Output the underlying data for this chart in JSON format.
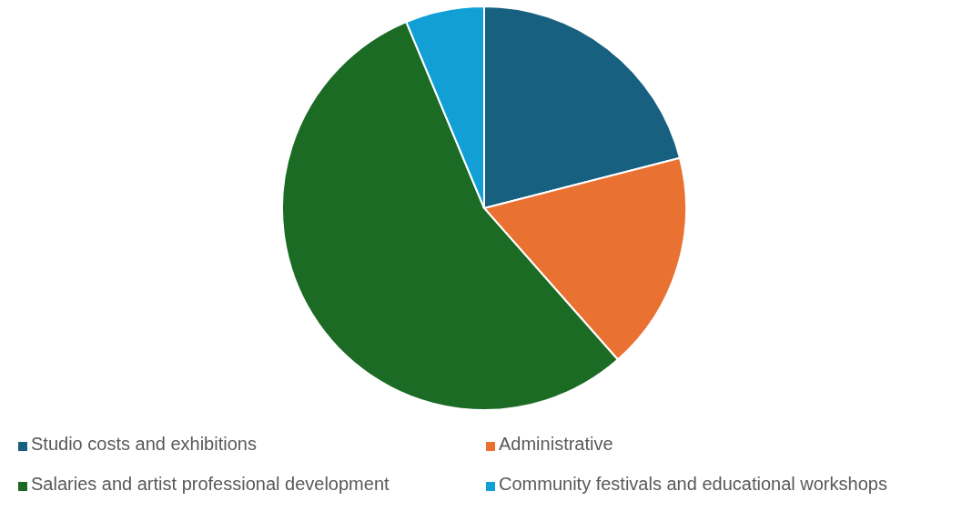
{
  "chart_data": {
    "type": "pie",
    "categories": [
      "Studio costs and exhibitions",
      "Administrative",
      "Salaries and artist professional development",
      "Community festivals and educational workshops"
    ],
    "values": [
      21,
      17.5,
      55.2,
      6.3
    ],
    "colors": [
      "#17607f",
      "#e97132",
      "#1b6b25",
      "#119fd6"
    ],
    "legend": "bottom"
  }
}
